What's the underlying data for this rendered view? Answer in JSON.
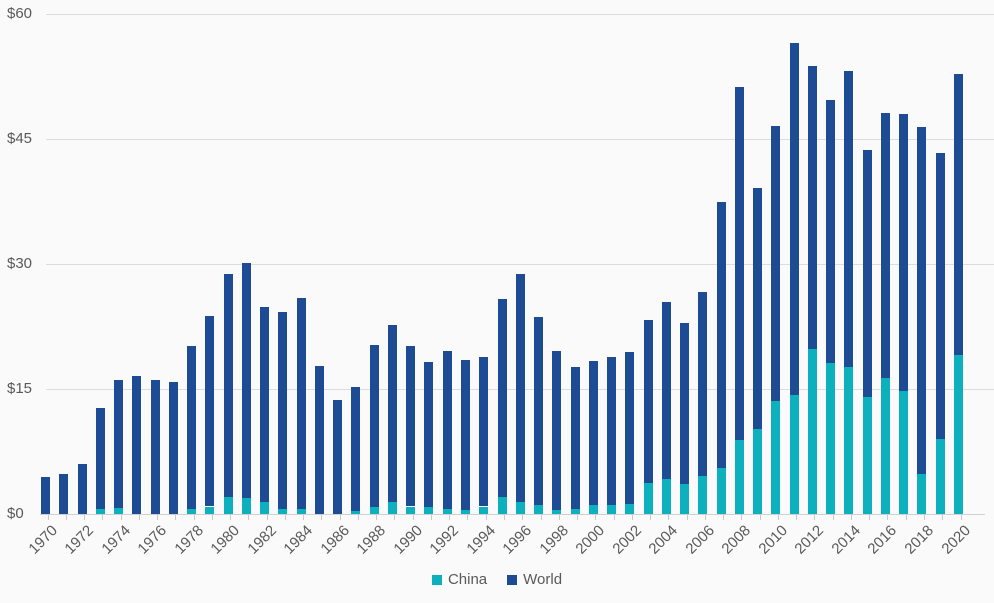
{
  "chart_data": {
    "type": "bar",
    "stacked": true,
    "title": "",
    "xlabel": "",
    "ylabel": "",
    "categories": [
      "1970",
      "1971",
      "1972",
      "1973",
      "1974",
      "1975",
      "1976",
      "1977",
      "1978",
      "1979",
      "1980",
      "1981",
      "1982",
      "1983",
      "1984",
      "1985",
      "1986",
      "1987",
      "1988",
      "1989",
      "1990",
      "1991",
      "1992",
      "1993",
      "1994",
      "1995",
      "1996",
      "1997",
      "1998",
      "1999",
      "2000",
      "2001",
      "2002",
      "2003",
      "2004",
      "2005",
      "2006",
      "2007",
      "2008",
      "2009",
      "2010",
      "2011",
      "2012",
      "2013",
      "2014",
      "2015",
      "2016",
      "2017",
      "2018",
      "2019",
      "2020"
    ],
    "series": [
      {
        "name": "China",
        "color": "#0cb1bd",
        "values": [
          0,
          0,
          0,
          0.6,
          0.7,
          0,
          0,
          0,
          0.6,
          0.9,
          2.1,
          1.9,
          1.4,
          0.6,
          0.6,
          0,
          0,
          0.4,
          0.8,
          1.4,
          0.9,
          0.8,
          0.6,
          0.5,
          0.9,
          2.0,
          1.5,
          1.1,
          0.5,
          0.6,
          1.1,
          1.1,
          1.2,
          3.7,
          4.2,
          3.6,
          4.6,
          5.5,
          8.9,
          10.2,
          13.6,
          14.3,
          19.8,
          18.1,
          17.6,
          14.0,
          16.3,
          14.8,
          4.8,
          9.0,
          19.1
        ]
      },
      {
        "name": "World",
        "color": "#1d4b94",
        "values": [
          4.5,
          4.8,
          6.0,
          12.1,
          15.4,
          16.6,
          16.1,
          15.9,
          19.6,
          22.9,
          26.7,
          28.2,
          23.5,
          23.7,
          25.3,
          17.8,
          13.7,
          14.8,
          19.5,
          21.3,
          19.3,
          17.4,
          19.0,
          18.0,
          17.9,
          23.8,
          27.3,
          22.5,
          19.1,
          17.0,
          17.3,
          17.7,
          18.2,
          19.6,
          21.2,
          19.3,
          22.0,
          31.9,
          42.4,
          28.9,
          33.0,
          42.2,
          34.0,
          31.6,
          35.6,
          29.7,
          31.8,
          33.2,
          41.6,
          34.3,
          33.7
        ]
      }
    ],
    "ylim": [
      0,
      60
    ],
    "yticks": [
      {
        "value": 0,
        "label": "$0"
      },
      {
        "value": 15,
        "label": "$15"
      },
      {
        "value": 30,
        "label": "$30"
      },
      {
        "value": 45,
        "label": "$45"
      },
      {
        "value": 60,
        "label": "$60"
      }
    ],
    "xtick_label_step": 2,
    "grid": "horizontal",
    "legend_position": "bottom-center"
  },
  "legend": {
    "china_label": "China",
    "world_label": "World"
  },
  "colors": {
    "china": "#0cb1bd",
    "world": "#1d4b94",
    "text": "#595959",
    "gridline": "#dcdcdc",
    "axis_line": "#d0d0d0",
    "background": "#fafafa"
  }
}
